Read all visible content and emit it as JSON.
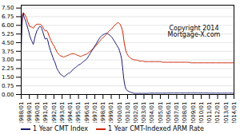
{
  "chart_data": {
    "type": "line",
    "annotations": [
      "Copyright 2014\nMortgage-X.com"
    ],
    "legend": "lower left",
    "grid": true,
    "xlim": [
      0,
      301
    ],
    "xticks": [
      {
        "value": 0,
        "label": "1988/01"
      },
      {
        "value": 11.576923,
        "label": "1989/01"
      },
      {
        "value": 23.153846,
        "label": "1990/01"
      },
      {
        "value": 34.730769,
        "label": "1991/01"
      },
      {
        "value": 46.307692,
        "label": "1992/01"
      },
      {
        "value": 57.884615,
        "label": "1993/01"
      },
      {
        "value": 69.461538,
        "label": "1994/01"
      },
      {
        "value": 81.038462,
        "label": "1995/01"
      },
      {
        "value": 92.615385,
        "label": "1996/01"
      },
      {
        "value": 104.192308,
        "label": "1997/01"
      },
      {
        "value": 115.769231,
        "label": "1998/01"
      },
      {
        "value": 127.346154,
        "label": "1999/01"
      },
      {
        "value": 138.923077,
        "label": "2000/01"
      },
      {
        "value": 150.5,
        "label": "2001/01"
      },
      {
        "value": 162.076923,
        "label": "2002/01"
      },
      {
        "value": 173.653846,
        "label": "2003/01"
      },
      {
        "value": 185.230769,
        "label": "2004/01"
      },
      {
        "value": 196.807692,
        "label": "2005/01"
      },
      {
        "value": 208.384615,
        "label": "2006/01"
      },
      {
        "value": 219.961538,
        "label": "2007/01"
      },
      {
        "value": 231.538462,
        "label": "2008/01"
      },
      {
        "value": 243.115385,
        "label": "2009/01"
      },
      {
        "value": 254.692308,
        "label": "2010/01"
      },
      {
        "value": 266.269231,
        "label": "2011/01"
      },
      {
        "value": 277.846154,
        "label": "2012/01"
      },
      {
        "value": 289.423077,
        "label": "2013/01"
      },
      {
        "value": 301,
        "label": "2014/01"
      }
    ],
    "ylim": [
      0.0,
      7.75
    ],
    "yticks": [
      {
        "value": 0.0,
        "label": "0.00"
      },
      0.75,
      {
        "value": 1.5,
        "label": "1.50"
      },
      2.25,
      {
        "value": 3.0,
        "label": "3.00"
      },
      3.75,
      {
        "value": 4.5,
        "label": "4.50"
      },
      5.25,
      {
        "value": 6.0,
        "label": "6.00"
      },
      6.75,
      {
        "value": 7.5,
        "label": "7.50"
      }
    ],
    "series": [
      {
        "name": "1 Year CMT Index",
        "color": "#1a1a6e",
        "values": [
          3.85,
          5.85,
          6.9,
          7.05,
          6.72,
          6.58,
          6.42,
          6.22,
          6.02,
          5.84,
          5.6,
          5.38,
          5.1,
          4.95,
          4.75,
          4.65,
          4.5,
          4.35,
          4.55,
          4.85,
          5.1,
          5.3,
          5.5,
          5.6,
          5.7,
          5.8,
          5.9,
          5.92,
          5.85,
          5.75,
          5.55,
          5.35,
          5.15,
          4.95,
          4.8,
          4.85,
          4.9,
          4.8,
          4.6,
          4.3,
          4.1,
          3.9,
          3.7,
          3.55,
          3.35,
          3.2,
          3.0,
          2.9,
          2.75,
          2.55,
          2.35,
          2.2,
          2.1,
          2.0,
          1.9,
          1.8,
          1.75,
          1.7,
          1.65,
          1.6,
          1.55,
          1.55,
          1.6,
          1.65,
          1.7,
          1.75,
          1.8,
          1.85,
          1.85,
          1.9,
          1.95,
          2.0,
          2.1,
          2.15,
          2.2,
          2.25,
          2.3,
          2.35,
          2.4,
          2.45,
          2.5,
          2.55,
          2.6,
          2.6,
          2.65,
          2.7,
          2.75,
          2.8,
          2.85,
          2.9,
          2.95,
          3.0,
          3.05,
          3.1,
          3.2,
          3.3,
          3.4,
          3.5,
          3.6,
          3.7,
          3.8,
          3.9,
          4.0,
          4.1,
          4.2,
          4.3,
          4.4,
          4.5,
          4.6,
          4.7,
          4.8,
          4.9,
          5.0,
          5.05,
          5.1,
          5.15,
          5.2,
          5.22,
          5.25,
          5.28,
          5.3,
          5.3,
          5.28,
          5.25,
          5.2,
          5.15,
          5.1,
          5.05,
          5.0,
          4.9,
          4.8,
          4.7,
          4.6,
          4.5,
          4.4,
          4.3,
          4.2,
          4.1,
          4.0,
          3.8,
          3.6,
          3.4,
          3.1,
          2.6,
          2.0,
          1.4,
          1.0,
          0.7,
          0.5,
          0.4,
          0.35,
          0.3,
          0.28,
          0.25,
          0.22,
          0.2,
          0.18,
          0.16,
          0.14,
          0.12,
          0.1,
          0.1,
          0.1,
          0.1,
          0.1,
          0.1,
          0.1,
          0.1,
          0.1,
          0.1,
          0.1,
          0.1,
          0.1,
          0.1,
          0.1,
          0.1,
          0.1,
          0.1,
          0.1,
          0.1,
          0.1,
          0.12,
          0.12,
          0.12,
          0.12,
          0.12,
          0.12,
          0.12,
          0.12,
          0.12,
          0.12,
          0.12,
          0.12,
          0.12,
          0.12,
          0.12,
          0.12,
          0.12,
          0.12,
          0.12,
          0.12,
          0.12,
          0.12,
          0.12,
          0.12,
          0.12,
          0.12,
          0.13,
          0.13,
          0.13,
          0.13,
          0.13,
          0.13,
          0.13,
          0.13,
          0.13,
          0.13,
          0.13,
          0.13,
          0.13,
          0.13,
          0.13,
          0.13,
          0.13,
          0.13,
          0.13,
          0.13,
          0.13,
          0.13,
          0.13,
          0.13,
          0.13,
          0.13,
          0.13,
          0.13,
          0.13,
          0.13,
          0.13,
          0.13,
          0.13,
          0.13,
          0.13,
          0.13,
          0.13,
          0.13,
          0.13,
          0.13,
          0.13,
          0.13,
          0.13,
          0.13,
          0.13,
          0.13,
          0.13,
          0.13,
          0.13,
          0.13,
          0.13,
          0.13,
          0.13,
          0.13,
          0.13,
          0.13,
          0.13,
          0.13,
          0.12,
          0.12,
          0.12,
          0.12,
          0.12,
          0.12,
          0.12,
          0.12,
          0.12,
          0.12,
          0.12,
          0.12,
          0.12,
          0.12,
          0.12,
          0.12,
          0.12,
          0.12,
          0.12,
          0.12,
          0.12,
          0.12,
          0.12,
          0.12,
          0.12,
          0.12,
          0.12,
          0.12,
          0.12,
          0.12,
          0.12,
          0.12,
          0.12,
          0.12,
          0.12,
          0.12,
          0.12,
          0.12,
          0.12,
          0.12,
          0.12,
          0.12,
          0.12,
          0.12,
          0.12,
          0.12,
          0.12,
          0.12,
          0.12,
          0.12
        ]
      },
      {
        "name": "1 Year CMT-Indexed ARM Rate",
        "color": "#cc2200",
        "values": [
          5.2,
          6.1,
          7.0,
          7.1,
          7.05,
          6.95,
          6.85,
          6.7,
          6.55,
          6.35,
          6.2,
          6.05,
          5.9,
          5.9,
          5.85,
          5.85,
          5.8,
          5.75,
          5.85,
          5.95,
          6.0,
          6.05,
          6.1,
          6.1,
          6.1,
          6.1,
          6.1,
          6.1,
          6.05,
          6.0,
          5.9,
          5.8,
          5.7,
          5.6,
          5.5,
          5.55,
          5.55,
          5.45,
          5.35,
          5.15,
          5.0,
          4.85,
          4.7,
          4.6,
          4.45,
          4.35,
          4.25,
          4.15,
          4.0,
          3.9,
          3.75,
          3.65,
          3.58,
          3.5,
          3.45,
          3.38,
          3.35,
          3.32,
          3.3,
          3.28,
          3.25,
          3.28,
          3.3,
          3.32,
          3.35,
          3.38,
          3.4,
          3.42,
          3.45,
          3.48,
          3.5,
          3.52,
          3.55,
          3.52,
          3.55,
          3.52,
          3.5,
          3.48,
          3.45,
          3.42,
          3.4,
          3.38,
          3.35,
          3.32,
          3.3,
          3.32,
          3.35,
          3.38,
          3.4,
          3.42,
          3.45,
          3.48,
          3.5,
          3.52,
          3.58,
          3.62,
          3.68,
          3.72,
          3.78,
          3.82,
          3.88,
          3.92,
          3.98,
          4.05,
          4.12,
          4.18,
          4.25,
          4.32,
          4.4,
          4.48,
          4.55,
          4.62,
          4.7,
          4.78,
          4.85,
          4.9,
          4.95,
          5.0,
          5.05,
          5.12,
          5.2,
          5.28,
          5.35,
          5.42,
          5.48,
          5.55,
          5.6,
          5.65,
          5.7,
          5.78,
          5.85,
          5.92,
          6.0,
          6.05,
          6.1,
          6.15,
          6.2,
          6.22,
          6.2,
          6.15,
          6.1,
          5.95,
          5.8,
          5.6,
          5.3,
          4.8,
          4.4,
          4.1,
          3.8,
          3.6,
          3.5,
          3.4,
          3.3,
          3.25,
          3.2,
          3.15,
          3.1,
          3.08,
          3.05,
          3.02,
          3.0,
          3.0,
          3.0,
          3.0,
          2.98,
          2.96,
          2.94,
          2.92,
          2.9,
          2.9,
          2.9,
          2.9,
          2.9,
          2.88,
          2.86,
          2.85,
          2.85,
          2.85,
          2.85,
          2.85,
          2.85,
          2.85,
          2.85,
          2.85,
          2.85,
          2.85,
          2.85,
          2.85,
          2.85,
          2.85,
          2.85,
          2.85,
          2.85,
          2.85,
          2.85,
          2.85,
          2.85,
          2.85,
          2.85,
          2.82,
          2.8,
          2.8,
          2.8,
          2.8,
          2.8,
          2.8,
          2.8,
          2.8,
          2.8,
          2.8,
          2.8,
          2.8,
          2.8,
          2.8,
          2.8,
          2.8,
          2.8,
          2.8,
          2.8,
          2.8,
          2.8,
          2.8,
          2.8,
          2.8,
          2.8,
          2.8,
          2.8,
          2.8,
          2.8,
          2.8,
          2.8,
          2.8,
          2.8,
          2.8,
          2.8,
          2.8,
          2.8,
          2.8,
          2.78,
          2.76,
          2.75,
          2.75,
          2.75,
          2.75,
          2.75,
          2.75,
          2.75,
          2.75,
          2.75,
          2.75,
          2.75,
          2.75,
          2.75,
          2.75,
          2.75,
          2.75,
          2.75,
          2.75,
          2.75,
          2.75,
          2.75,
          2.75,
          2.75,
          2.75,
          2.75,
          2.75,
          2.75,
          2.75,
          2.75,
          2.75,
          2.75,
          2.75,
          2.75,
          2.75,
          2.75,
          2.75,
          2.75,
          2.75,
          2.75,
          2.75,
          2.75,
          2.75,
          2.75,
          2.75,
          2.75,
          2.75,
          2.75,
          2.75,
          2.75,
          2.75,
          2.75,
          2.75,
          2.75,
          2.75,
          2.75,
          2.75,
          2.75,
          2.75,
          2.75,
          2.75,
          2.75,
          2.75,
          2.75,
          2.75,
          2.75,
          2.75,
          2.75,
          2.75,
          2.75,
          2.75,
          2.75,
          2.75,
          2.75,
          2.75,
          2.75
        ]
      }
    ]
  }
}
